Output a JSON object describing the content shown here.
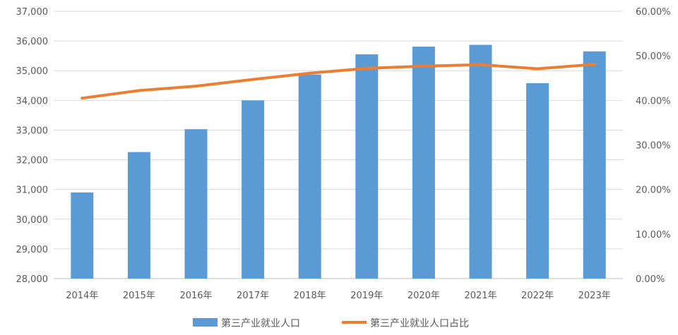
{
  "chart_data": {
    "type": "bar",
    "categories": [
      "2014年",
      "2015年",
      "2016年",
      "2017年",
      "2018年",
      "2019年",
      "2020年",
      "2021年",
      "2022年",
      "2023年"
    ],
    "series": [
      {
        "name": "第三产业就业人口",
        "type": "bar",
        "axis": "left",
        "color": "#5B9BD5",
        "values": [
          30900,
          32260,
          33030,
          34000,
          34870,
          35550,
          35810,
          35870,
          34580,
          35650
        ]
      },
      {
        "name": "第三产业就业人口占比",
        "type": "line",
        "axis": "right",
        "color": "#ED7D31",
        "values": [
          0.405,
          0.422,
          0.432,
          0.447,
          0.461,
          0.472,
          0.477,
          0.48,
          0.471,
          0.481
        ]
      }
    ],
    "y_left": {
      "ylim": [
        28000,
        37000
      ],
      "ticks": [
        28000,
        29000,
        30000,
        31000,
        32000,
        33000,
        34000,
        35000,
        36000,
        37000
      ],
      "tick_labels": [
        "28,000",
        "29,000",
        "30,000",
        "31,000",
        "32,000",
        "33,000",
        "34,000",
        "35,000",
        "36,000",
        "37,000"
      ]
    },
    "y_right": {
      "ylim": [
        0,
        0.6
      ],
      "ticks": [
        0,
        0.1,
        0.2,
        0.3,
        0.4,
        0.5,
        0.6
      ],
      "tick_labels": [
        "0.00%",
        "10.00%",
        "20.00%",
        "30.00%",
        "40.00%",
        "50.00%",
        "60.00%"
      ]
    },
    "grid": true,
    "legend_position": "bottom"
  }
}
